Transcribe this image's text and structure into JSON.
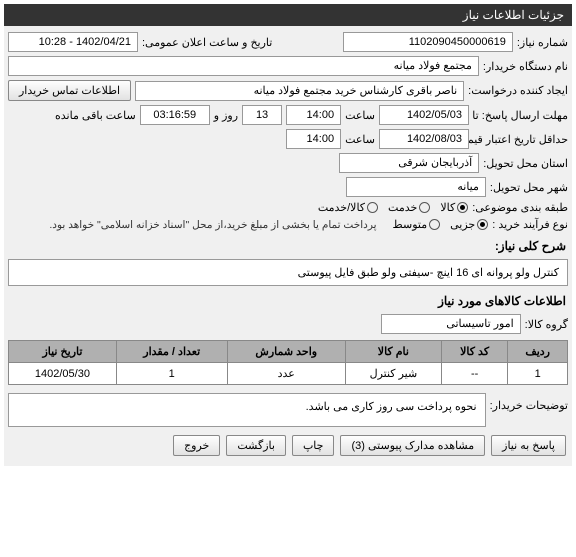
{
  "colors": {
    "header_bg": "#333333",
    "header_fg": "#ffffff",
    "panel_bg": "#f0f0f0",
    "field_bg": "#ffffff",
    "border": "#999999",
    "th_bg": "#b0b0b0"
  },
  "header": {
    "title": "جزئیات اطلاعات نیاز"
  },
  "fields": {
    "need_number_label": "شماره نیاز:",
    "need_number": "1102090450000619",
    "announce_date_label": "تاریخ و ساعت اعلان عمومی:",
    "announce_date": "1402/04/21 - 10:28",
    "buyer_org_label": "نام دستگاه خریدار:",
    "buyer_org": "مجتمع فولاد میانه",
    "requester_label": "ایجاد کننده درخواست:",
    "requester": "ناصر باقری کارشناس خرید مجتمع فولاد میانه",
    "contact_info_btn": "اطلاعات تماس خریدار",
    "deadline_label": "مهلت ارسال پاسخ: تا تاریخ:",
    "deadline_date": "1402/05/03",
    "time_label": "ساعت",
    "deadline_time": "14:00",
    "days_label": "روز و",
    "days_value": "13",
    "remaining_time": "03:16:59",
    "remaining_label": "ساعت باقی مانده",
    "min_validity_label": "حداقل تاریخ اعتبار قیمت: تا تاریخ:",
    "min_validity_date": "1402/08/03",
    "min_validity_time": "14:00",
    "province_label": "استان محل تحویل:",
    "province": "آذربایجان شرقی",
    "city_label": "شهر محل تحویل:",
    "city": "میانه",
    "subject_class_label": "طبقه بندی موضوعی:",
    "goods_radio": "کالا",
    "service_radio": "خدمت",
    "goods_service_radio": "کالا/خدمت",
    "purchase_type_label": "نوع فرآیند خرید :",
    "partial_radio": "جزیی",
    "medium_radio": "متوسط",
    "purchase_note": "پرداخت تمام یا بخشی از مبلغ خرید،از محل \"اسناد خزانه اسلامی\" خواهد بود.",
    "general_desc_label": "شرح کلی نیاز:",
    "general_desc": "کنترل ولو پروانه ای 16 اینچ -سیفتی ولو طبق فایل پیوستی",
    "items_section": "اطلاعات کالاهای مورد نیاز",
    "goods_group_label": "گروه کالا:",
    "goods_group": "امور تاسیساتی",
    "buyer_notes_label": "توضیحات خریدار:",
    "buyer_notes": "نحوه پرداخت سی روز کاری می باشد."
  },
  "table": {
    "columns": [
      "ردیف",
      "کد کالا",
      "نام کالا",
      "واحد شمارش",
      "تعداد / مقدار",
      "تاریخ نیاز"
    ],
    "rows": [
      [
        "1",
        "--",
        "شیر کنترل",
        "عدد",
        "1",
        "1402/05/30"
      ]
    ]
  },
  "buttons": {
    "respond": "پاسخ به نیاز",
    "attachments": "مشاهده مدارک پیوستی (3)",
    "print": "چاپ",
    "back": "بازگشت",
    "exit": "خروج"
  }
}
